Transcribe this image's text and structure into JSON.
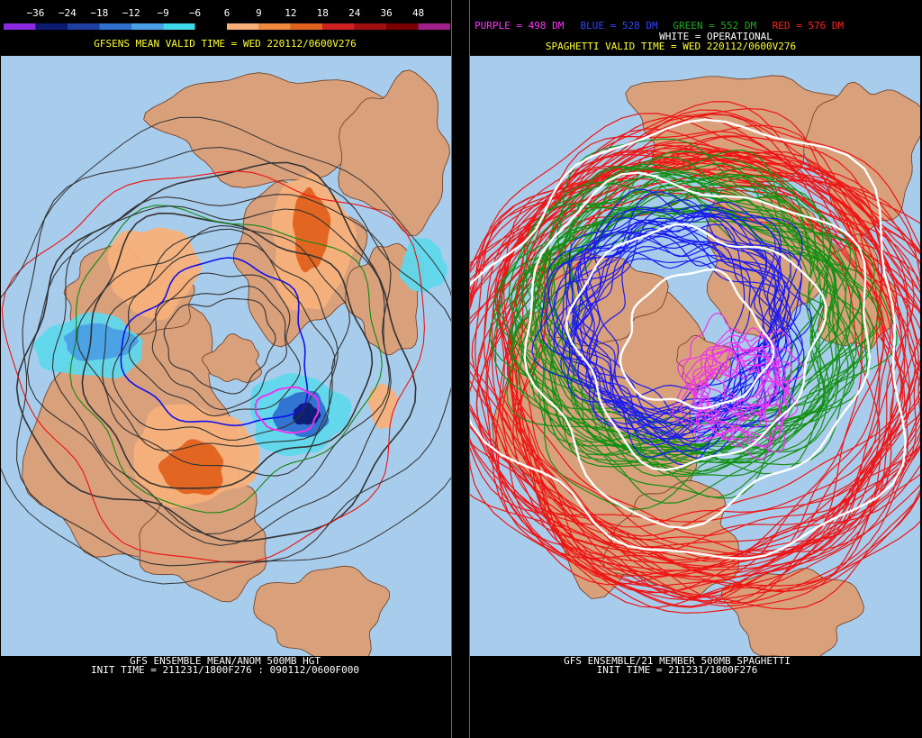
{
  "legend": {
    "labels": [
      "−36",
      "−24",
      "−18",
      "−12",
      "−9",
      "−6",
      "6",
      "9",
      "12",
      "18",
      "24",
      "36",
      "48"
    ],
    "colors": [
      "#8a2be2",
      "#0c1a70",
      "#1f3fa0",
      "#2f6fd0",
      "#4aa0e6",
      "#3fd8e8",
      "#000000",
      "#f7b07a",
      "#f08a3c",
      "#e0621e",
      "#d02020",
      "#a01010",
      "#7a0000",
      "#a0208a"
    ]
  },
  "left": {
    "title": "GFSENS MEAN VALID TIME = WED 220112/0600V276",
    "footer": [
      "GFS ENSEMBLE MEAN/ANOM 500MB HGT",
      "INIT TIME = 211231/1800F276 : 090112/0600F000"
    ]
  },
  "right": {
    "key": [
      {
        "text": "PURPLE = 498 DM",
        "color": "#ff33ff"
      },
      {
        "text": "BLUE = 528 DM",
        "color": "#3344ff"
      },
      {
        "text": "GREEN = 552 DM",
        "color": "#22aa22"
      },
      {
        "text": "RED = 576 DM",
        "color": "#ff2222"
      }
    ],
    "operational": "WHITE = OPERATIONAL",
    "title": "SPAGHETTI VALID TIME = WED 220112/0600V276",
    "footer": [
      "GFS ENSEMBLE/21 MEMBER 500MB SPAGHETTI",
      "INIT TIME = 211231/1800F276"
    ]
  }
}
